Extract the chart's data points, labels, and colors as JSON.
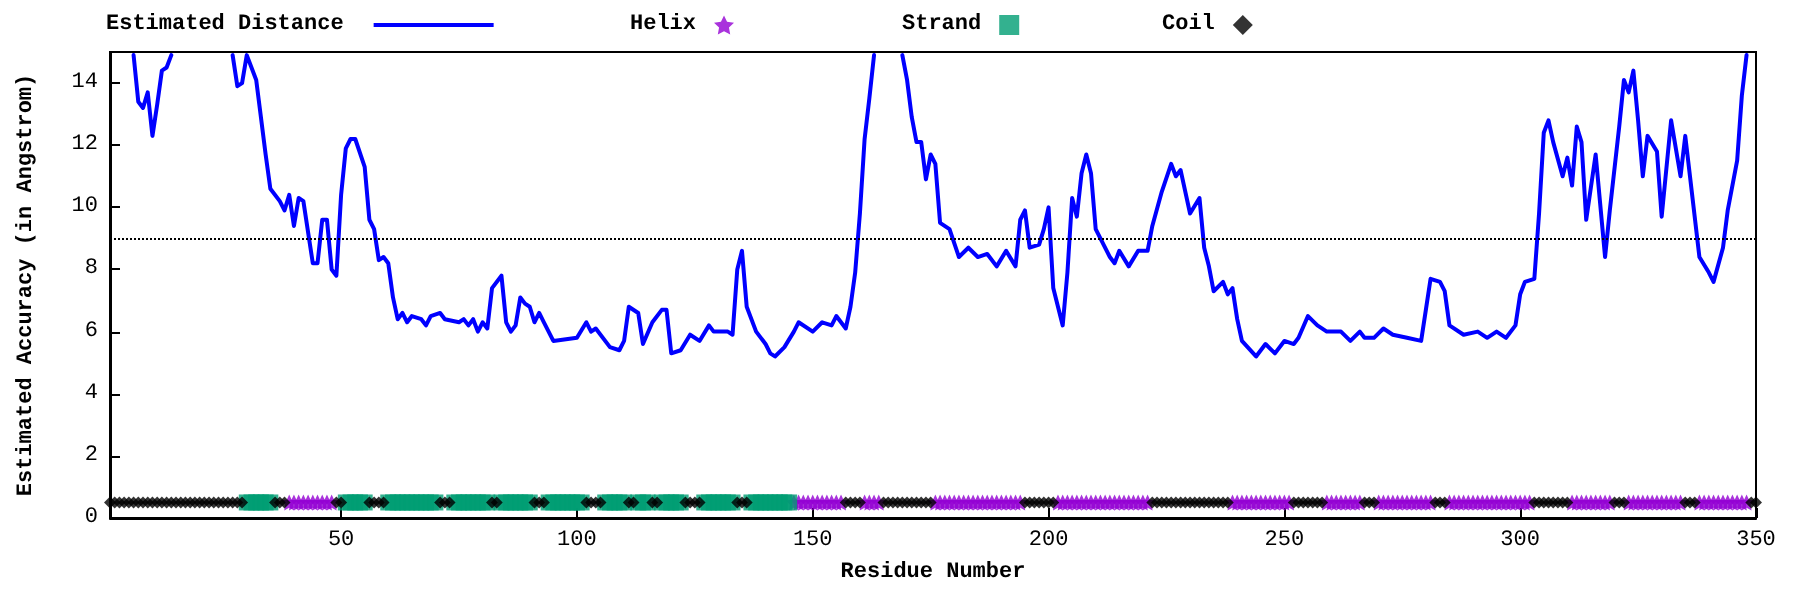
{
  "chart_data": {
    "type": "line",
    "xlabel": "Residue Number",
    "ylabel": "Estimated Accuracy (in Angstrom)",
    "xlim": [
      1,
      350
    ],
    "xticks": [
      50,
      100,
      150,
      200,
      250,
      300,
      350
    ],
    "ylim": [
      0,
      15
    ],
    "yticks": [
      0,
      2,
      4,
      6,
      8,
      10,
      12,
      14
    ],
    "grid": false,
    "legend": "top",
    "ref_lines": [
      {
        "axis": "y",
        "value": 9,
        "color": "#000000",
        "line_style": "dotted"
      }
    ],
    "series": [
      {
        "name": "Estimated Distance",
        "color": "#0000ff",
        "marker": "none",
        "line_style": "solid",
        "x": [
          6,
          7,
          8,
          9,
          10,
          11,
          12,
          13,
          14,
          20,
          27,
          28,
          29,
          30,
          32,
          33,
          34,
          35,
          37,
          38,
          39,
          40,
          41,
          42,
          44,
          45,
          46,
          47,
          48,
          49,
          50,
          51,
          52,
          53,
          55,
          56,
          57,
          58,
          59,
          60,
          61,
          62,
          63,
          64,
          65,
          67,
          68,
          69,
          71,
          72,
          75,
          76,
          77,
          78,
          79,
          80,
          81,
          82,
          84,
          85,
          86,
          87,
          88,
          89,
          90,
          91,
          92,
          93,
          95,
          100,
          102,
          103,
          104,
          107,
          109,
          110,
          111,
          113,
          114,
          116,
          118,
          119,
          120,
          122,
          124,
          126,
          128,
          129,
          132,
          133,
          134,
          135,
          136,
          138,
          140,
          141,
          142,
          144,
          146,
          147,
          150,
          152,
          154,
          155,
          157,
          158,
          159,
          160,
          161,
          162,
          163,
          166,
          169,
          170,
          171,
          172,
          173,
          174,
          175,
          176,
          177,
          179,
          181,
          183,
          185,
          187,
          189,
          191,
          193,
          194,
          195,
          196,
          198,
          199,
          200,
          201,
          203,
          204,
          205,
          206,
          207,
          208,
          209,
          210,
          213,
          214,
          215,
          217,
          219,
          221,
          222,
          224,
          226,
          227,
          228,
          230,
          232,
          233,
          234,
          235,
          237,
          238,
          239,
          240,
          241,
          244,
          246,
          248,
          250,
          252,
          253,
          255,
          257,
          259,
          262,
          264,
          266,
          267,
          269,
          271,
          273,
          276,
          279,
          280,
          281,
          283,
          284,
          285,
          288,
          291,
          293,
          295,
          297,
          299,
          300,
          301,
          303,
          304,
          305,
          306,
          307,
          309,
          310,
          311,
          312,
          313,
          314,
          316,
          318,
          319,
          321,
          322,
          323,
          324,
          325,
          326,
          327,
          329,
          330,
          332,
          334,
          335,
          336,
          338,
          340,
          341,
          343,
          344,
          346,
          347,
          348
        ],
        "values": [
          14.9,
          13.4,
          13.2,
          13.7,
          12.3,
          13.3,
          14.4,
          14.5,
          14.9,
          null,
          14.9,
          13.9,
          14.0,
          14.9,
          14.1,
          12.9,
          11.7,
          10.6,
          10.2,
          9.9,
          10.4,
          9.4,
          10.3,
          10.2,
          8.2,
          8.2,
          9.6,
          9.6,
          8.0,
          7.8,
          10.4,
          11.9,
          12.2,
          12.2,
          11.3,
          9.6,
          9.3,
          8.3,
          8.4,
          8.2,
          7.1,
          6.4,
          6.6,
          6.3,
          6.5,
          6.4,
          6.2,
          6.5,
          6.6,
          6.4,
          6.3,
          6.4,
          6.2,
          6.4,
          6.0,
          6.3,
          6.1,
          7.4,
          7.8,
          6.3,
          6.0,
          6.2,
          7.1,
          6.9,
          6.8,
          6.3,
          6.6,
          6.3,
          5.7,
          5.8,
          6.3,
          6.0,
          6.1,
          5.5,
          5.4,
          5.7,
          6.8,
          6.6,
          5.6,
          6.3,
          6.7,
          6.7,
          5.3,
          5.4,
          5.9,
          5.7,
          6.2,
          6.0,
          6.0,
          5.9,
          8.0,
          8.6,
          6.8,
          6.0,
          5.6,
          5.3,
          5.2,
          5.5,
          6.0,
          6.3,
          6.0,
          6.3,
          6.2,
          6.5,
          6.1,
          6.8,
          7.9,
          9.8,
          12.2,
          13.5,
          14.9,
          null,
          14.9,
          14.1,
          12.9,
          12.1,
          12.1,
          10.9,
          11.7,
          11.4,
          9.5,
          9.3,
          8.4,
          8.7,
          8.4,
          8.5,
          8.1,
          8.6,
          8.1,
          9.6,
          9.9,
          8.7,
          8.8,
          9.3,
          10.0,
          7.4,
          6.2,
          7.9,
          10.3,
          9.7,
          11.1,
          11.7,
          11.1,
          9.3,
          8.4,
          8.2,
          8.6,
          8.1,
          8.6,
          8.6,
          9.4,
          10.5,
          11.4,
          11.0,
          11.2,
          9.8,
          10.3,
          8.7,
          8.1,
          7.3,
          7.6,
          7.2,
          7.4,
          6.4,
          5.7,
          5.2,
          5.6,
          5.3,
          5.7,
          5.6,
          5.8,
          6.5,
          6.2,
          6.0,
          6.0,
          5.7,
          6.0,
          5.8,
          5.8,
          6.1,
          5.9,
          5.8,
          5.7,
          6.7,
          7.7,
          7.6,
          7.3,
          6.2,
          5.9,
          6.0,
          5.8,
          6.0,
          5.8,
          6.2,
          7.2,
          7.6,
          7.7,
          9.8,
          12.4,
          12.8,
          12.1,
          11.0,
          11.6,
          10.7,
          12.6,
          12.1,
          9.6,
          11.7,
          8.4,
          9.9,
          12.6,
          14.1,
          13.7,
          14.4,
          12.8,
          11.0,
          12.3,
          11.8,
          9.7,
          12.8,
          11.0,
          12.3,
          11.0,
          8.4,
          7.9,
          7.6,
          8.7,
          9.9,
          11.5,
          13.6,
          14.9
        ]
      },
      {
        "name": "Helix",
        "type": "scatter",
        "color": "#9400d3",
        "marker": "star",
        "x": [
          39,
          40,
          41,
          42,
          43,
          44,
          45,
          46,
          47,
          48,
          146,
          147,
          148,
          149,
          150,
          151,
          152,
          153,
          154,
          155,
          156,
          161,
          162,
          163,
          164,
          176,
          177,
          178,
          179,
          180,
          181,
          182,
          183,
          184,
          185,
          186,
          187,
          188,
          189,
          190,
          191,
          192,
          193,
          194,
          202,
          203,
          204,
          205,
          206,
          207,
          208,
          209,
          210,
          211,
          212,
          213,
          214,
          215,
          216,
          217,
          218,
          219,
          220,
          221,
          239,
          240,
          241,
          242,
          243,
          244,
          245,
          246,
          247,
          248,
          249,
          250,
          251,
          259,
          260,
          261,
          262,
          263,
          264,
          265,
          266,
          270,
          271,
          272,
          273,
          274,
          275,
          276,
          277,
          278,
          279,
          280,
          281,
          285,
          286,
          287,
          288,
          289,
          290,
          291,
          292,
          293,
          294,
          295,
          296,
          297,
          298,
          299,
          300,
          301,
          302,
          311,
          312,
          313,
          314,
          315,
          316,
          317,
          318,
          319,
          323,
          324,
          325,
          326,
          327,
          328,
          329,
          330,
          331,
          332,
          333,
          334,
          338,
          339,
          340,
          341,
          342,
          343,
          344,
          345,
          346,
          347,
          348
        ],
        "values": [
          0.5,
          0.5,
          0.5,
          0.5,
          0.5,
          0.5,
          0.5,
          0.5,
          0.5,
          0.5,
          0.5,
          0.5,
          0.5,
          0.5,
          0.5,
          0.5,
          0.5,
          0.5,
          0.5,
          0.5,
          0.5,
          0.5,
          0.5,
          0.5,
          0.5,
          0.5,
          0.5,
          0.5,
          0.5,
          0.5,
          0.5,
          0.5,
          0.5,
          0.5,
          0.5,
          0.5,
          0.5,
          0.5,
          0.5,
          0.5,
          0.5,
          0.5,
          0.5,
          0.5,
          0.5,
          0.5,
          0.5,
          0.5,
          0.5,
          0.5,
          0.5,
          0.5,
          0.5,
          0.5,
          0.5,
          0.5,
          0.5,
          0.5,
          0.5,
          0.5,
          0.5,
          0.5,
          0.5,
          0.5,
          0.5,
          0.5,
          0.5,
          0.5,
          0.5,
          0.5,
          0.5,
          0.5,
          0.5,
          0.5,
          0.5,
          0.5,
          0.5,
          0.5,
          0.5,
          0.5,
          0.5,
          0.5,
          0.5,
          0.5,
          0.5,
          0.5,
          0.5,
          0.5,
          0.5,
          0.5,
          0.5,
          0.5,
          0.5,
          0.5,
          0.5,
          0.5,
          0.5,
          0.5,
          0.5,
          0.5,
          0.5,
          0.5,
          0.5,
          0.5,
          0.5,
          0.5,
          0.5,
          0.5,
          0.5,
          0.5,
          0.5,
          0.5,
          0.5,
          0.5,
          0.5,
          0.5,
          0.5,
          0.5,
          0.5,
          0.5,
          0.5,
          0.5,
          0.5,
          0.5,
          0.5,
          0.5,
          0.5,
          0.5,
          0.5,
          0.5,
          0.5,
          0.5,
          0.5,
          0.5,
          0.5,
          0.5,
          0.5,
          0.5,
          0.5,
          0.5,
          0.5,
          0.5,
          0.5,
          0.5,
          0.5,
          0.5,
          0.5
        ]
      },
      {
        "name": "Strand",
        "type": "scatter",
        "color": "#009e73",
        "marker": "square",
        "x": [
          30,
          31,
          32,
          33,
          34,
          35,
          51,
          52,
          53,
          54,
          55,
          60,
          61,
          62,
          63,
          64,
          65,
          66,
          67,
          68,
          69,
          70,
          74,
          75,
          76,
          77,
          78,
          79,
          80,
          81,
          84,
          85,
          86,
          87,
          88,
          89,
          90,
          94,
          95,
          96,
          97,
          98,
          99,
          100,
          101,
          106,
          107,
          108,
          109,
          110,
          113,
          114,
          115,
          118,
          119,
          120,
          121,
          122,
          127,
          128,
          129,
          130,
          131,
          132,
          133,
          137,
          138,
          139,
          140,
          141,
          142,
          143,
          144,
          145
        ],
        "values": [
          0.5,
          0.5,
          0.5,
          0.5,
          0.5,
          0.5,
          0.5,
          0.5,
          0.5,
          0.5,
          0.5,
          0.5,
          0.5,
          0.5,
          0.5,
          0.5,
          0.5,
          0.5,
          0.5,
          0.5,
          0.5,
          0.5,
          0.5,
          0.5,
          0.5,
          0.5,
          0.5,
          0.5,
          0.5,
          0.5,
          0.5,
          0.5,
          0.5,
          0.5,
          0.5,
          0.5,
          0.5,
          0.5,
          0.5,
          0.5,
          0.5,
          0.5,
          0.5,
          0.5,
          0.5,
          0.5,
          0.5,
          0.5,
          0.5,
          0.5,
          0.5,
          0.5,
          0.5,
          0.5,
          0.5,
          0.5,
          0.5,
          0.5,
          0.5,
          0.5,
          0.5,
          0.5,
          0.5,
          0.5,
          0.5,
          0.5,
          0.5,
          0.5,
          0.5,
          0.5,
          0.5,
          0.5,
          0.5,
          0.5
        ]
      },
      {
        "name": "Coil",
        "type": "scatter",
        "color": "#000000",
        "marker": "diamond",
        "x": [
          1,
          2,
          3,
          4,
          5,
          6,
          7,
          8,
          9,
          10,
          11,
          12,
          13,
          14,
          15,
          16,
          17,
          18,
          19,
          20,
          21,
          22,
          23,
          24,
          25,
          26,
          27,
          28,
          29,
          36,
          37,
          38,
          49,
          50,
          56,
          57,
          58,
          59,
          71,
          72,
          73,
          82,
          83,
          91,
          92,
          93,
          102,
          103,
          104,
          105,
          111,
          112,
          116,
          117,
          123,
          124,
          125,
          126,
          134,
          135,
          136,
          157,
          158,
          159,
          160,
          165,
          166,
          167,
          168,
          169,
          170,
          171,
          172,
          173,
          174,
          175,
          195,
          196,
          197,
          198,
          199,
          200,
          201,
          222,
          223,
          224,
          225,
          226,
          227,
          228,
          229,
          230,
          231,
          232,
          233,
          234,
          235,
          236,
          237,
          238,
          252,
          253,
          254,
          255,
          256,
          257,
          258,
          267,
          268,
          269,
          282,
          283,
          284,
          303,
          304,
          305,
          306,
          307,
          308,
          309,
          310,
          320,
          321,
          322,
          335,
          336,
          337,
          349,
          350
        ],
        "values": [
          0.5,
          0.5,
          0.5,
          0.5,
          0.5,
          0.5,
          0.5,
          0.5,
          0.5,
          0.5,
          0.5,
          0.5,
          0.5,
          0.5,
          0.5,
          0.5,
          0.5,
          0.5,
          0.5,
          0.5,
          0.5,
          0.5,
          0.5,
          0.5,
          0.5,
          0.5,
          0.5,
          0.5,
          0.5,
          0.5,
          0.5,
          0.5,
          0.5,
          0.5,
          0.5,
          0.5,
          0.5,
          0.5,
          0.5,
          0.5,
          0.5,
          0.5,
          0.5,
          0.5,
          0.5,
          0.5,
          0.5,
          0.5,
          0.5,
          0.5,
          0.5,
          0.5,
          0.5,
          0.5,
          0.5,
          0.5,
          0.5,
          0.5,
          0.5,
          0.5,
          0.5,
          0.5,
          0.5,
          0.5,
          0.5,
          0.5,
          0.5,
          0.5,
          0.5,
          0.5,
          0.5,
          0.5,
          0.5,
          0.5,
          0.5,
          0.5,
          0.5,
          0.5,
          0.5,
          0.5,
          0.5,
          0.5,
          0.5,
          0.5,
          0.5,
          0.5,
          0.5,
          0.5,
          0.5,
          0.5,
          0.5,
          0.5,
          0.5,
          0.5,
          0.5,
          0.5,
          0.5,
          0.5,
          0.5,
          0.5,
          0.5,
          0.5,
          0.5,
          0.5,
          0.5,
          0.5,
          0.5,
          0.5,
          0.5,
          0.5,
          0.5,
          0.5,
          0.5,
          0.5,
          0.5,
          0.5,
          0.5,
          0.5,
          0.5,
          0.5,
          0.5,
          0.5,
          0.5,
          0.5,
          0.5,
          0.5,
          0.5,
          0.5,
          0.5
        ]
      }
    ]
  }
}
